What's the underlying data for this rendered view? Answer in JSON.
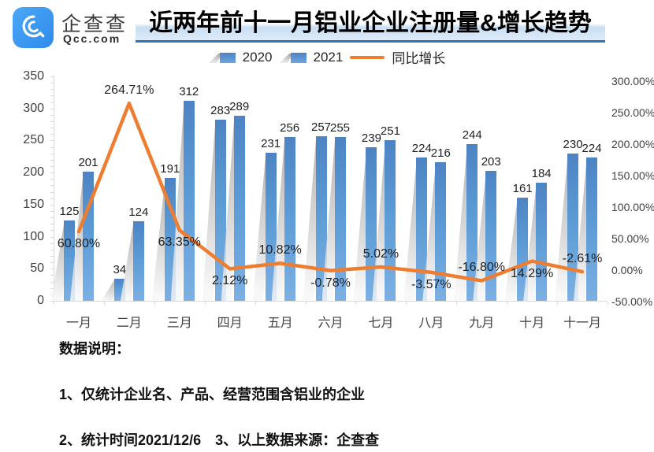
{
  "header": {
    "brand_cn": "企查查",
    "brand_en": "Qcc.com",
    "title": "近两年前十一月铝业企业注册量&增长趋势"
  },
  "legend": {
    "bar_items": [
      {
        "label": "2020"
      },
      {
        "label": "2021"
      }
    ],
    "line_item": {
      "label": "同比增长"
    }
  },
  "chart_data": {
    "type": "bar",
    "title": "近两年前十一月铝业企业注册量&增长趋势",
    "categories": [
      "一月",
      "二月",
      "三月",
      "四月",
      "五月",
      "六月",
      "七月",
      "八月",
      "九月",
      "十月",
      "十一月"
    ],
    "series": [
      {
        "name": "2020",
        "values": [
          125,
          34,
          191,
          283,
          231,
          257,
          239,
          224,
          244,
          161,
          230
        ]
      },
      {
        "name": "2021",
        "values": [
          201,
          124,
          312,
          289,
          256,
          255,
          251,
          216,
          203,
          184,
          224
        ]
      }
    ],
    "line_series": {
      "name": "同比增长",
      "values": [
        60.8,
        264.71,
        63.35,
        2.12,
        10.82,
        -0.78,
        5.02,
        -3.57,
        -16.8,
        14.29,
        -2.61
      ],
      "labels": [
        "60.80%",
        "264.71%",
        "63.35%",
        "2.12%",
        "10.82%",
        "-0.78%",
        "5.02%",
        "-3.57%",
        "-16.80%",
        "14.29%",
        "-2.61%"
      ],
      "label_side": [
        "below",
        "above",
        "below",
        "below",
        "above",
        "below",
        "above",
        "below",
        "above",
        "below",
        "above"
      ]
    },
    "left_axis": {
      "ticks": [
        0,
        50,
        100,
        150,
        200,
        250,
        300,
        350
      ],
      "range": [
        0,
        350
      ],
      "grid": false
    },
    "right_axis": {
      "ticks": [
        "-50.00%",
        "0.00%",
        "50.00%",
        "100.00%",
        "150.00%",
        "200.00%",
        "250.00%",
        "300.00%"
      ],
      "tick_values": [
        -50,
        0,
        50,
        100,
        150,
        200,
        250,
        300
      ],
      "range": [
        -50,
        300
      ]
    },
    "legend_position": "top",
    "colors": {
      "bar": "#5B9BD5",
      "line": "#ED7D31",
      "brand_blue": "#3d9af0",
      "title_underline": "#2e75b6"
    }
  },
  "footer": {
    "heading": "数据说明：",
    "note1": "1、仅统计企业名、产品、经营范围含铝业的企业",
    "note2": "2、统计时间2021/12/6　3、以上数据来源：企查查"
  }
}
